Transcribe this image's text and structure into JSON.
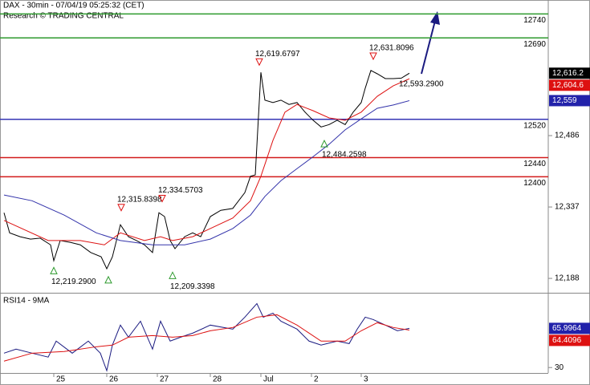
{
  "header": {
    "title": "DAX - 30min - 07/04/19 05:25:32 (CET)",
    "subtitle": "Research © TRADING CENTRAL"
  },
  "chart_data": [
    {
      "type": "line",
      "xlim": [
        0,
        683
      ],
      "ylim": [
        12158,
        12769
      ],
      "yticks": [
        {
          "value": 12188,
          "label": "12,188"
        },
        {
          "value": 12337,
          "label": "12,337"
        },
        {
          "value": 12486,
          "label": "12,486"
        }
      ],
      "series": [
        {
          "color": "#000000",
          "x": [
            5,
            12,
            25,
            38,
            50,
            63,
            67,
            75,
            88,
            100,
            113,
            126,
            133,
            140,
            150,
            160,
            170,
            180,
            190,
            198,
            205,
            212,
            218,
            230,
            240,
            250,
            262,
            275,
            290,
            305,
            312,
            318,
            325,
            330,
            340,
            350,
            360,
            370,
            380,
            390,
            400,
            410,
            420,
            430,
            440,
            450,
            455,
            462,
            470,
            480,
            490,
            500,
            510
          ],
          "values": [
            12325,
            12283,
            12275,
            12270,
            12272,
            12258,
            12225,
            12267,
            12263,
            12258,
            12242,
            12233,
            12208,
            12233,
            12300,
            12275,
            12267,
            12258,
            12242,
            12325,
            12317,
            12267,
            12250,
            12275,
            12283,
            12275,
            12317,
            12330,
            12334,
            12367,
            12401,
            12404,
            12618,
            12560,
            12555,
            12560,
            12551,
            12555,
            12535,
            12518,
            12504,
            12509,
            12518,
            12509,
            12535,
            12555,
            12585,
            12622,
            12615,
            12605,
            12605,
            12606,
            12616.2
          ]
        },
        {
          "color": "#dd1111",
          "x": [
            5,
            60,
            100,
            130,
            150,
            180,
            200,
            215,
            240,
            262,
            290,
            312,
            325,
            340,
            355,
            370,
            390,
            410,
            430,
            450,
            470,
            490,
            510
          ],
          "values": [
            12309,
            12267,
            12267,
            12258,
            12283,
            12267,
            12275,
            12267,
            12275,
            12292,
            12314,
            12350,
            12401,
            12476,
            12535,
            12551,
            12538,
            12523,
            12518,
            12535,
            12568,
            12590,
            12604.6
          ]
        },
        {
          "color": "#3333aa",
          "x": [
            5,
            40,
            80,
            120,
            150,
            190,
            230,
            262,
            290,
            312,
            330,
            350,
            370,
            390,
            410,
            430,
            450,
            470,
            490,
            510
          ],
          "values": [
            12362,
            12350,
            12320,
            12283,
            12267,
            12258,
            12258,
            12270,
            12292,
            12320,
            12359,
            12392,
            12417,
            12442,
            12468,
            12498,
            12521,
            12543,
            12550,
            12559
          ]
        }
      ],
      "levels": [
        {
          "value": 12740,
          "color": "#2e9a2e"
        },
        {
          "value": 12690,
          "color": "#2e9a2e"
        },
        {
          "value": 12520,
          "color": "#3535b5"
        },
        {
          "value": 12440,
          "color": "#d21a1a"
        },
        {
          "value": 12400,
          "color": "#d21a1a"
        }
      ],
      "annotations": [
        {
          "label": "12,619.6797",
          "value": 12619.6797,
          "x": 323,
          "kind": "high"
        },
        {
          "label": "12,631.8096",
          "value": 12631.8096,
          "x": 465,
          "kind": "high"
        },
        {
          "label": "12,315.8398",
          "value": 12315.8398,
          "x": 151,
          "kind": "high"
        },
        {
          "label": "12,334.5703",
          "value": 12334.5703,
          "x": 202,
          "kind": "high"
        },
        {
          "label": "12,219.2900",
          "value": 12219.29,
          "x": 67,
          "kind": "low"
        },
        {
          "label": "12,209.3398",
          "value": 12209.3398,
          "x": 215,
          "kind": "low"
        },
        {
          "value": 12200,
          "x": 135,
          "kind": "low"
        },
        {
          "label": "12,484.2598",
          "value": 12484.2598,
          "x": 404,
          "kind": "low"
        },
        {
          "label": "12,593.2900",
          "value": 12593.29,
          "x": 497,
          "kind": "note"
        }
      ],
      "tags": [
        {
          "value": 12616.2,
          "label": "12,616.2",
          "color": "#000000"
        },
        {
          "value": 12604.6,
          "label": "12,604.6",
          "color": "#dd1111"
        },
        {
          "value": 12559,
          "label": "12,559",
          "color": "#2222aa"
        }
      ]
    },
    {
      "type": "line",
      "title": "RSI14 - 9MA",
      "xlim": [
        0,
        683
      ],
      "ylim": [
        25,
        98
      ],
      "yticks": [
        30
      ],
      "xticks": [
        {
          "value": 67,
          "label": "25"
        },
        {
          "value": 133,
          "label": "26"
        },
        {
          "value": 196,
          "label": "27"
        },
        {
          "value": 262,
          "label": "28"
        },
        {
          "value": 325,
          "label": "Jul"
        },
        {
          "value": 388,
          "label": "2"
        },
        {
          "value": 450,
          "label": "3"
        }
      ],
      "series": [
        {
          "color": "#1a1a80",
          "x": [
            5,
            20,
            40,
            60,
            70,
            90,
            110,
            125,
            133,
            140,
            150,
            160,
            175,
            190,
            200,
            212,
            225,
            240,
            262,
            290,
            305,
            320,
            328,
            340,
            350,
            370,
            385,
            400,
            420,
            435,
            445,
            455,
            465,
            480,
            495,
            510
          ],
          "values": [
            43.2,
            46.9,
            43.2,
            39.6,
            54.3,
            43.2,
            54.3,
            43.2,
            27.1,
            50.6,
            69,
            57.9,
            72.6,
            46.9,
            72.6,
            54.3,
            57.9,
            61.6,
            69,
            65.3,
            76.3,
            88.8,
            76.3,
            80,
            72.6,
            65.3,
            54.3,
            50.6,
            54.3,
            52,
            65.3,
            76.3,
            74.1,
            69,
            63.8,
            65.9964
          ]
        },
        {
          "color": "#dd1111",
          "x": [
            5,
            40,
            80,
            120,
            140,
            160,
            190,
            215,
            240,
            262,
            290,
            320,
            345,
            370,
            400,
            430,
            450,
            470,
            490,
            510
          ],
          "values": [
            35.9,
            43.2,
            44.7,
            49.1,
            50.6,
            57.9,
            59.4,
            57.9,
            59.4,
            63.8,
            66.8,
            76.3,
            78.5,
            69,
            54.3,
            54.3,
            63.8,
            71.2,
            66.8,
            64.4096
          ]
        }
      ],
      "tags": [
        {
          "value": 65.9964,
          "label": "65.9964",
          "color": "#2222aa"
        },
        {
          "value": 64.4096,
          "label": "64.4096",
          "color": "#dd1111"
        }
      ]
    }
  ]
}
